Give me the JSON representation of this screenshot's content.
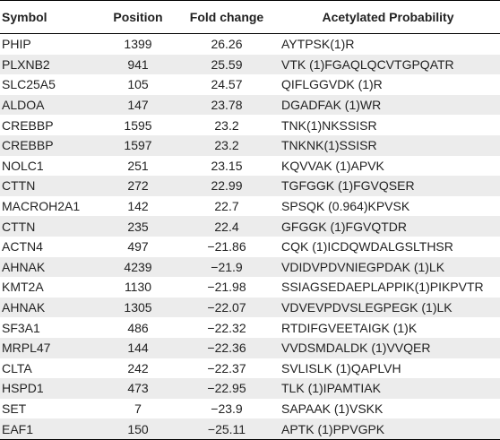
{
  "headers": {
    "symbol": "Symbol",
    "position": "Position",
    "fold_change": "Fold change",
    "probability": "Acetylated Probability"
  },
  "rows": [
    {
      "symbol": "PHIP",
      "position": "1399",
      "fold": "26.26",
      "seq": "AYTPSK(1)R"
    },
    {
      "symbol": "PLXNB2",
      "position": "941",
      "fold": "25.59",
      "seq": "VTK (1)FGAQLQCVTGPQATR"
    },
    {
      "symbol": "SLC25A5",
      "position": "105",
      "fold": "24.57",
      "seq": "QIFLGGVDK (1)R"
    },
    {
      "symbol": "ALDOA",
      "position": "147",
      "fold": "23.78",
      "seq": "DGADFAK (1)WR"
    },
    {
      "symbol": "CREBBP",
      "position": "1595",
      "fold": "23.2",
      "seq": "TNK(1)NKSSISR"
    },
    {
      "symbol": "CREBBP",
      "position": "1597",
      "fold": "23.2",
      "seq": "TNKNK(1)SSISR"
    },
    {
      "symbol": "NOLC1",
      "position": "251",
      "fold": "23.15",
      "seq": "KQVVAK (1)APVK"
    },
    {
      "symbol": "CTTN",
      "position": "272",
      "fold": "22.99",
      "seq": "TGFGGK (1)FGVQSER"
    },
    {
      "symbol": "MACROH2A1",
      "position": "142",
      "fold": "22.7",
      "seq": "SPSQK (0.964)KPVSK"
    },
    {
      "symbol": "CTTN",
      "position": "235",
      "fold": "22.4",
      "seq": "GFGGK (1)FGVQTDR"
    },
    {
      "symbol": "ACTN4",
      "position": "497",
      "fold": "−21.86",
      "seq": "CQK (1)ICDQWDALGSLTHSR"
    },
    {
      "symbol": "AHNAK",
      "position": "4239",
      "fold": "−21.9",
      "seq": "VDIDVPDVNIEGPDAK (1)LK"
    },
    {
      "symbol": "KMT2A",
      "position": "1130",
      "fold": "−21.98",
      "seq": "SSIAGSEDAEPLAPPIK(1)PIKPVTR"
    },
    {
      "symbol": "AHNAK",
      "position": "1305",
      "fold": "−22.07",
      "seq": "VDVEVPDVSLEGPEGK (1)LK"
    },
    {
      "symbol": "SF3A1",
      "position": "486",
      "fold": "−22.32",
      "seq": "RTDIFGVEETAIGK (1)K"
    },
    {
      "symbol": "MRPL47",
      "position": "144",
      "fold": "−22.36",
      "seq": "VVDSMDALDK (1)VVQER"
    },
    {
      "symbol": "CLTA",
      "position": "242",
      "fold": "−22.37",
      "seq": "SVLISLK (1)QAPLVH"
    },
    {
      "symbol": "HSPD1",
      "position": "473",
      "fold": "−22.95",
      "seq": "TLK (1)IPAMTIAK"
    },
    {
      "symbol": "SET",
      "position": "7",
      "fold": "−23.9",
      "seq": "SAPAAK (1)VSKK"
    },
    {
      "symbol": "EAF1",
      "position": "150",
      "fold": "−25.11",
      "seq": "APTK (1)PPVGPK"
    }
  ]
}
